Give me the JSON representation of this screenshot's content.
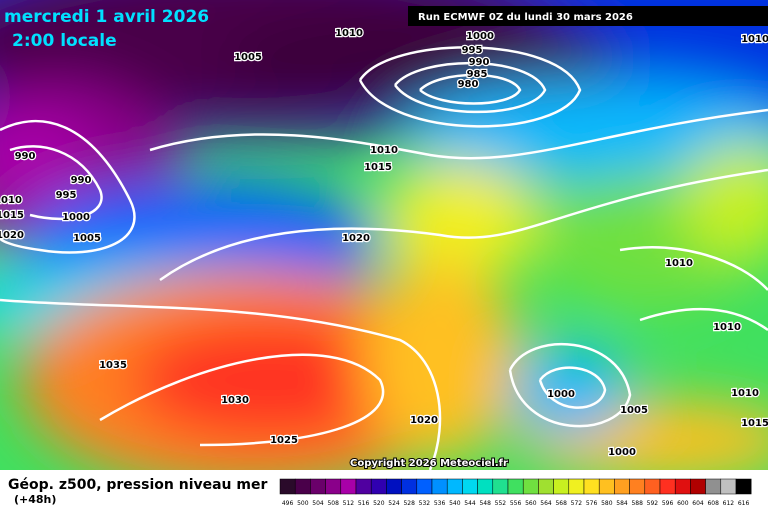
{
  "header": {
    "date": "mercredi 1 avril 2026",
    "time": "2:00 locale",
    "run": "Run ECMWF 0Z du lundi 30 mars 2026"
  },
  "isobar_labels": [
    1010,
    1005,
    1000,
    995,
    990,
    985,
    980,
    1010,
    990,
    990,
    995,
    1010,
    1015,
    1000,
    1005,
    1020,
    1010,
    1015,
    1020,
    1010,
    1010,
    1035,
    1030,
    1000,
    1005,
    1010,
    1015,
    1020,
    1025,
    1000
  ],
  "copyright": "Copyright 2026 Meteociel.fr",
  "footer": {
    "title": "Géop. z500, pression niveau mer",
    "lead": "(+48h)"
  },
  "scale": {
    "values": [
      496,
      500,
      504,
      508,
      512,
      516,
      520,
      524,
      528,
      532,
      536,
      540,
      544,
      548,
      552,
      556,
      560,
      564,
      568,
      572,
      576,
      580,
      584,
      588,
      592,
      596,
      600,
      604,
      608,
      612,
      616
    ],
    "colors": [
      "#2a0a2a",
      "#4a004a",
      "#6a006a",
      "#8a008a",
      "#a800a8",
      "#5000a0",
      "#3000b0",
      "#0010c0",
      "#0030e0",
      "#0060ff",
      "#0090ff",
      "#00b8ff",
      "#00d8f0",
      "#00e0c0",
      "#20e090",
      "#40e060",
      "#70e040",
      "#a0e030",
      "#c8f020",
      "#f0f020",
      "#ffe020",
      "#ffc020",
      "#ffa020",
      "#ff8020",
      "#ff6020",
      "#ff3020",
      "#e01010",
      "#b00000",
      "#909090",
      "#c0c0c0",
      "#000000"
    ]
  }
}
